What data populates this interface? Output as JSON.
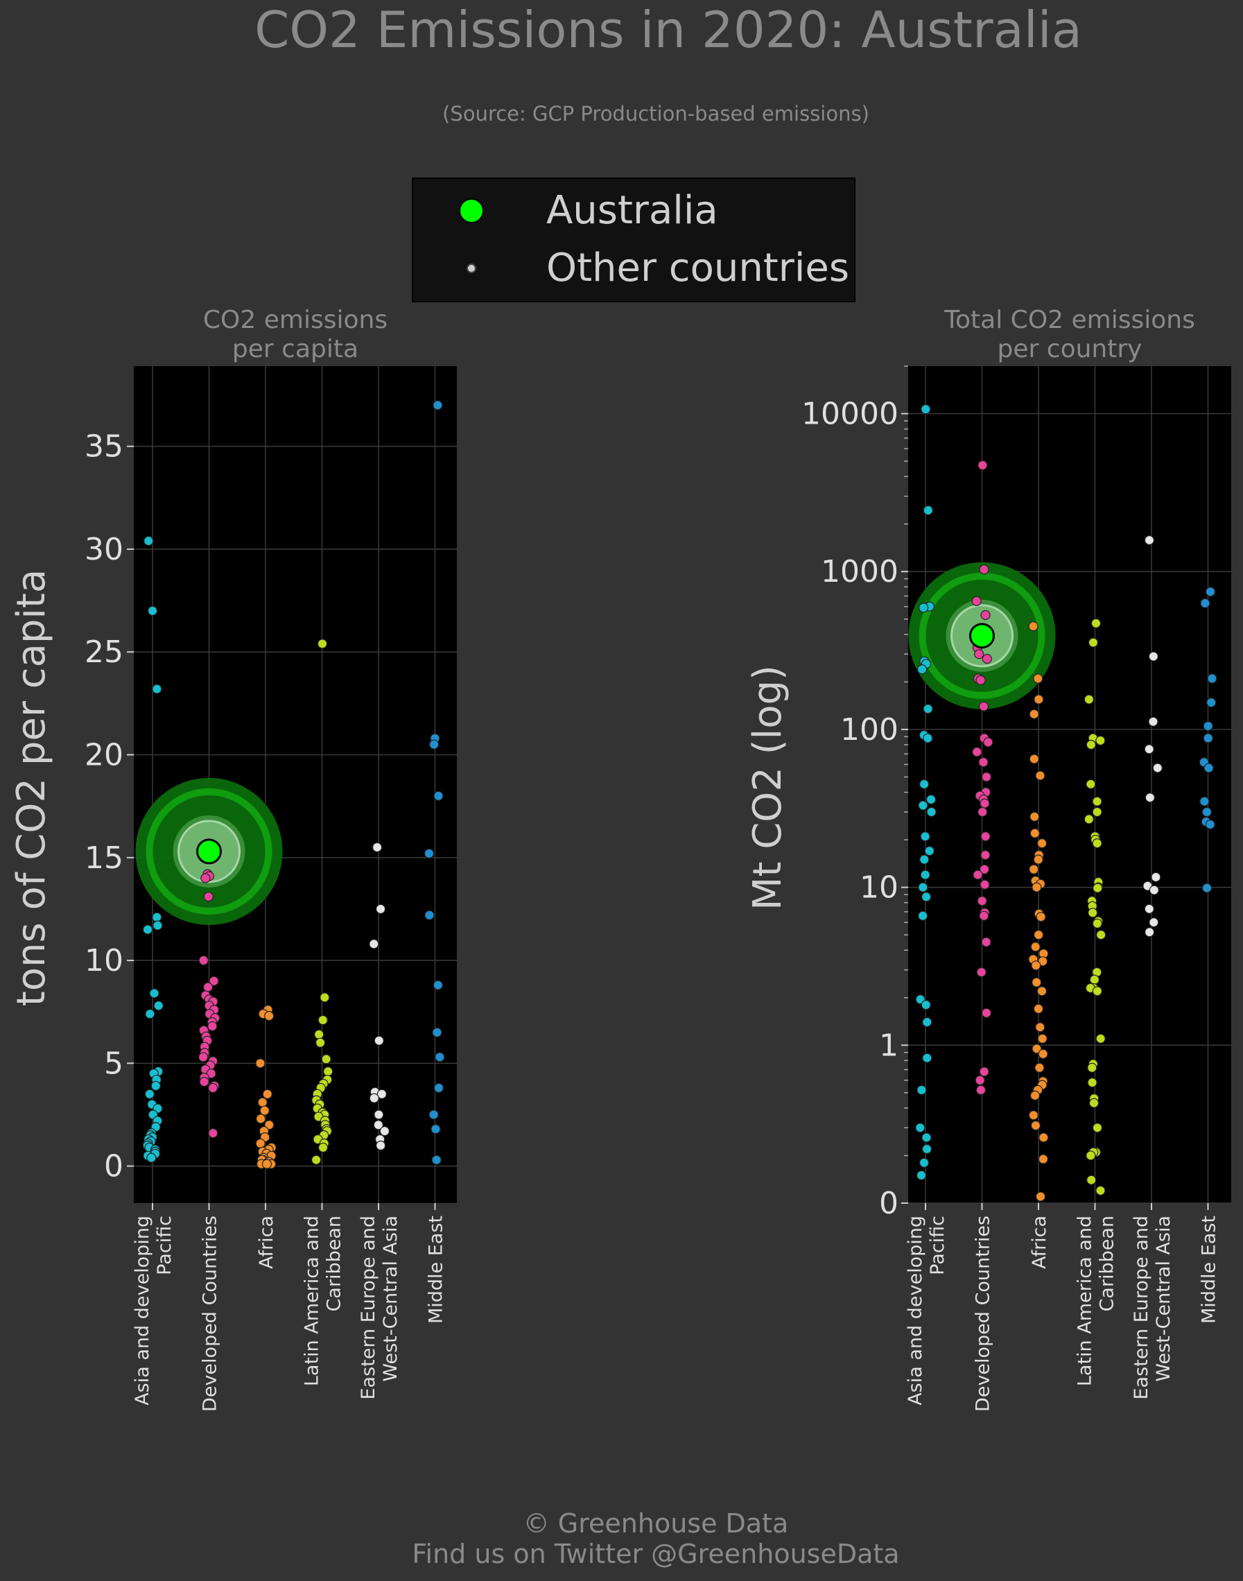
{
  "header": {
    "title": "CO2 Emissions in 2020: Australia",
    "subtitle": "(Source: GCP Production-based emissions)"
  },
  "legend": {
    "highlight_label": "Australia",
    "others_label": "Other countries"
  },
  "footer": {
    "line1": "© Greenhouse Data",
    "line2": "Find us on Twitter @GreenhouseData"
  },
  "colors": {
    "background": "#333333",
    "panel": "#000000",
    "highlight": "#00ff00",
    "Asia and developing Pacific": "#17becf",
    "Developed Countries": "#e7439a",
    "Africa": "#f28e2b",
    "Latin America and Caribbean": "#bcdc1e",
    "Eastern Europe and West-Central Asia": "#e6e6e6",
    "Middle East": "#1f8fcf"
  },
  "chart_data": [
    {
      "type": "scatter",
      "title_lines": [
        "CO2 emissions",
        "per capita"
      ],
      "ylabel": "tons of CO2 per capita",
      "ylim": [
        -1.8,
        38.9
      ],
      "yticks": [
        0,
        5,
        10,
        15,
        20,
        25,
        30,
        35
      ],
      "ytick_labels": [
        "0",
        "5",
        "10",
        "15",
        "20",
        "25",
        "30",
        "35"
      ],
      "grid": true,
      "categories": [
        {
          "lines": [
            "Asia and developing",
            "Pacific"
          ],
          "key": "Asia and developing Pacific"
        },
        {
          "lines": [
            "Developed Countries"
          ],
          "key": "Developed Countries"
        },
        {
          "lines": [
            "Africa"
          ],
          "key": "Africa"
        },
        {
          "lines": [
            "Latin America and",
            "Caribbean"
          ],
          "key": "Latin America and Caribbean"
        },
        {
          "lines": [
            "Eastern Europe and",
            "West-Central Asia"
          ],
          "key": "Eastern Europe and West-Central Asia"
        },
        {
          "lines": [
            "Middle East"
          ],
          "key": "Middle East"
        }
      ],
      "highlight": {
        "name": "Australia",
        "category": 1,
        "value": 15.3
      },
      "series": [
        {
          "category": 0,
          "values": [
            30.4,
            27.0,
            23.2,
            12.1,
            11.7,
            11.5,
            8.4,
            7.8,
            7.4,
            4.6,
            4.5,
            4.2,
            3.9,
            3.5,
            3.0,
            2.8,
            2.5,
            2.2,
            1.9,
            1.6,
            1.5,
            1.4,
            1.3,
            1.2,
            1.1,
            1.0,
            0.9,
            0.8,
            0.7,
            0.6,
            0.5,
            0.4
          ]
        },
        {
          "category": 1,
          "values": [
            14.2,
            14.1,
            14.0,
            13.1,
            10.0,
            9.0,
            8.7,
            8.3,
            8.1,
            8.0,
            7.8,
            7.6,
            7.4,
            7.2,
            7.0,
            6.8,
            6.6,
            6.3,
            6.1,
            5.8,
            5.5,
            5.3,
            5.1,
            4.9,
            4.7,
            4.5,
            4.3,
            4.1,
            3.9,
            3.8,
            1.6
          ]
        },
        {
          "category": 2,
          "values": [
            7.6,
            7.4,
            7.3,
            5.0,
            3.5,
            3.1,
            2.7,
            2.3,
            2.0,
            1.7,
            1.4,
            1.1,
            0.9,
            0.8,
            0.7,
            0.6,
            0.5,
            0.4,
            0.3,
            0.3,
            0.2,
            0.2,
            0.1,
            0.1,
            0.1
          ]
        },
        {
          "category": 3,
          "values": [
            25.4,
            8.2,
            7.1,
            6.4,
            6.0,
            5.2,
            4.6,
            4.2,
            4.0,
            3.8,
            3.5,
            3.2,
            3.0,
            2.8,
            2.6,
            2.5,
            2.4,
            2.2,
            2.0,
            1.8,
            1.7,
            1.5,
            1.3,
            1.1,
            0.9,
            0.3
          ]
        },
        {
          "category": 4,
          "values": [
            15.5,
            12.5,
            10.8,
            6.1,
            3.6,
            3.5,
            3.3,
            2.5,
            2.0,
            1.7,
            1.3,
            1.0
          ]
        },
        {
          "category": 5,
          "values": [
            37.0,
            20.8,
            20.5,
            18.0,
            15.2,
            12.2,
            8.8,
            6.5,
            5.3,
            3.8,
            2.5,
            1.8,
            0.3
          ]
        }
      ]
    },
    {
      "type": "scatter",
      "title_lines": [
        "Total CO2 emissions",
        "per country"
      ],
      "ylabel": "Mt CO2 (log)",
      "yscale": "log",
      "ylim": [
        0.1,
        20000
      ],
      "yticks": [
        0.1,
        1,
        10,
        100,
        1000,
        10000
      ],
      "ytick_labels": [
        "0",
        "1",
        "10",
        "100",
        "1000",
        "10000"
      ],
      "grid": true,
      "categories": [
        {
          "lines": [
            "Asia and developing",
            "Pacific"
          ],
          "key": "Asia and developing Pacific"
        },
        {
          "lines": [
            "Developed Countries"
          ],
          "key": "Developed Countries"
        },
        {
          "lines": [
            "Africa"
          ],
          "key": "Africa"
        },
        {
          "lines": [
            "Latin America and",
            "Caribbean"
          ],
          "key": "Latin America and Caribbean"
        },
        {
          "lines": [
            "Eastern Europe and",
            "West-Central Asia"
          ],
          "key": "Eastern Europe and West-Central Asia"
        },
        {
          "lines": [
            "Middle East"
          ],
          "key": "Middle East"
        }
      ],
      "highlight": {
        "name": "Australia",
        "category": 1,
        "value": 392
      },
      "series": [
        {
          "category": 0,
          "values": [
            10668,
            2442,
            600,
            590,
            270,
            260,
            240,
            135,
            92,
            88,
            45,
            36,
            33,
            30,
            21,
            17,
            15,
            12,
            10,
            8.7,
            6.6,
            1.95,
            1.8,
            1.4,
            0.83,
            0.52,
            0.3,
            0.26,
            0.22,
            0.18,
            0.15
          ]
        },
        {
          "category": 1,
          "values": [
            4713,
            1030,
            650,
            530,
            330,
            300,
            280,
            210,
            205,
            140,
            88,
            83,
            72,
            62,
            50,
            40,
            38,
            36,
            34,
            30,
            21,
            16,
            13,
            12,
            10.4,
            8.2,
            6.9,
            6.6,
            4.5,
            2.9,
            1.6,
            0.68,
            0.6,
            0.52
          ]
        },
        {
          "category": 2,
          "values": [
            450,
            210,
            155,
            125,
            65,
            51,
            28,
            22,
            19,
            16,
            15,
            13,
            11,
            10.5,
            10,
            6.8,
            6.5,
            5.0,
            4.2,
            3.8,
            3.5,
            3.4,
            3.2,
            2.5,
            2.2,
            1.7,
            1.3,
            1.1,
            0.95,
            0.88,
            0.72,
            0.59,
            0.56,
            0.52,
            0.48,
            0.36,
            0.31,
            0.26,
            0.19,
            0.11
          ]
        },
        {
          "category": 3,
          "values": [
            470,
            355,
            155,
            88,
            85,
            80,
            45,
            35,
            30,
            27,
            21,
            20,
            19,
            10.8,
            10,
            9.9,
            8.2,
            7.6,
            6.9,
            6.1,
            5.9,
            5.0,
            2.9,
            2.6,
            2.3,
            2.3,
            2.2,
            1.1,
            0.76,
            0.72,
            0.58,
            0.46,
            0.43,
            0.3,
            0.21,
            0.21,
            0.2,
            0.14,
            0.12
          ]
        },
        {
          "category": 4,
          "values": [
            1580,
            290,
            112,
            75,
            57,
            37,
            11.6,
            10.2,
            9.6,
            7.3,
            6.0,
            5.2
          ]
        },
        {
          "category": 5,
          "values": [
            745,
            630,
            210,
            148,
            105,
            88,
            62,
            57,
            35,
            30,
            26,
            25,
            9.9
          ]
        }
      ]
    }
  ]
}
